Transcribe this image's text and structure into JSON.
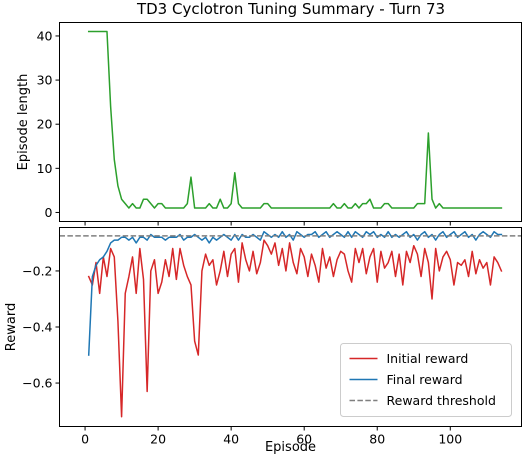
{
  "title": "TD3 Cyclotron Tuning Summary - Turn 73",
  "chart_data": [
    {
      "type": "line",
      "ylabel": "Episode length",
      "xlim": [
        -7,
        119.5
      ],
      "ylim": [
        -2.05,
        43.05
      ],
      "xticks": [
        0,
        20,
        40,
        60,
        80,
        100
      ],
      "yticks": [
        0,
        10,
        20,
        30,
        40
      ],
      "show_xtick_labels": false,
      "series": [
        {
          "color": "#2ca02c",
          "x": [
            1,
            2,
            3,
            4,
            5,
            6,
            7,
            8,
            9,
            10,
            11,
            12,
            13,
            14,
            15,
            16,
            17,
            18,
            19,
            20,
            21,
            22,
            23,
            24,
            25,
            26,
            27,
            28,
            29,
            30,
            31,
            32,
            33,
            34,
            35,
            36,
            37,
            38,
            39,
            40,
            41,
            42,
            43,
            44,
            45,
            46,
            47,
            48,
            49,
            50,
            51,
            52,
            53,
            54,
            55,
            56,
            57,
            58,
            59,
            60,
            61,
            62,
            63,
            64,
            65,
            66,
            67,
            68,
            69,
            70,
            71,
            72,
            73,
            74,
            75,
            76,
            77,
            78,
            79,
            80,
            81,
            82,
            83,
            84,
            85,
            86,
            87,
            88,
            89,
            90,
            91,
            92,
            93,
            94,
            95,
            96,
            97,
            98,
            99,
            100,
            101,
            102,
            103,
            104,
            105,
            106,
            107,
            108,
            109,
            110,
            111,
            112,
            113,
            114
          ],
          "values": [
            41,
            41,
            41,
            41,
            41,
            41,
            24,
            12,
            6,
            3,
            2,
            1,
            2,
            1,
            1,
            3,
            3,
            2,
            1,
            2,
            2,
            1,
            1,
            1,
            1,
            1,
            1,
            2,
            8,
            1,
            1,
            1,
            1,
            2,
            1,
            1,
            3,
            1,
            1,
            2,
            9,
            2,
            1,
            1,
            1,
            1,
            1,
            1,
            2,
            2,
            1,
            1,
            1,
            1,
            1,
            1,
            1,
            1,
            1,
            1,
            1,
            1,
            1,
            1,
            1,
            1,
            1,
            2,
            1,
            1,
            2,
            1,
            1,
            2,
            1,
            2,
            2,
            3,
            1,
            1,
            1,
            2,
            2,
            1,
            1,
            1,
            1,
            1,
            1,
            1,
            2,
            2,
            2,
            18,
            3,
            1,
            2,
            1,
            1,
            1,
            1,
            1,
            1,
            1,
            1,
            1,
            1,
            1,
            1,
            1,
            1,
            1,
            1,
            1
          ]
        }
      ]
    },
    {
      "type": "line",
      "xlabel": "Episode",
      "ylabel": "Reward",
      "xlim": [
        -7,
        119.5
      ],
      "ylim": [
        -0.755,
        -0.045
      ],
      "xticks": [
        0,
        20,
        40,
        60,
        80,
        100
      ],
      "yticks": [
        -0.6,
        -0.4,
        -0.2
      ],
      "legend_position": "lower right",
      "series": [
        {
          "name": "Initial reward",
          "color": "#d62728",
          "x": [
            1,
            2,
            3,
            4,
            5,
            6,
            7,
            8,
            9,
            10,
            11,
            12,
            13,
            14,
            15,
            16,
            17,
            18,
            19,
            20,
            21,
            22,
            23,
            24,
            25,
            26,
            27,
            28,
            29,
            30,
            31,
            32,
            33,
            34,
            35,
            36,
            37,
            38,
            39,
            40,
            41,
            42,
            43,
            44,
            45,
            46,
            47,
            48,
            49,
            50,
            51,
            52,
            53,
            54,
            55,
            56,
            57,
            58,
            59,
            60,
            61,
            62,
            63,
            64,
            65,
            66,
            67,
            68,
            69,
            70,
            71,
            72,
            73,
            74,
            75,
            76,
            77,
            78,
            79,
            80,
            81,
            82,
            83,
            84,
            85,
            86,
            87,
            88,
            89,
            90,
            91,
            92,
            93,
            94,
            95,
            96,
            97,
            98,
            99,
            100,
            101,
            102,
            103,
            104,
            105,
            106,
            107,
            108,
            109,
            110,
            111,
            112,
            113,
            114
          ],
          "values": [
            -0.22,
            -0.25,
            -0.17,
            -0.28,
            -0.15,
            -0.22,
            -0.12,
            -0.15,
            -0.38,
            -0.72,
            -0.28,
            -0.22,
            -0.15,
            -0.28,
            -0.12,
            -0.23,
            -0.63,
            -0.2,
            -0.16,
            -0.28,
            -0.24,
            -0.16,
            -0.22,
            -0.12,
            -0.23,
            -0.12,
            -0.18,
            -0.22,
            -0.25,
            -0.45,
            -0.5,
            -0.2,
            -0.14,
            -0.18,
            -0.16,
            -0.25,
            -0.2,
            -0.13,
            -0.22,
            -0.14,
            -0.12,
            -0.24,
            -0.1,
            -0.16,
            -0.2,
            -0.13,
            -0.21,
            -0.17,
            -0.09,
            -0.11,
            -0.14,
            -0.1,
            -0.18,
            -0.12,
            -0.2,
            -0.1,
            -0.17,
            -0.21,
            -0.12,
            -0.15,
            -0.22,
            -0.14,
            -0.18,
            -0.24,
            -0.12,
            -0.19,
            -0.15,
            -0.22,
            -0.16,
            -0.13,
            -0.14,
            -0.2,
            -0.24,
            -0.12,
            -0.17,
            -0.12,
            -0.21,
            -0.15,
            -0.12,
            -0.24,
            -0.13,
            -0.19,
            -0.17,
            -0.13,
            -0.22,
            -0.14,
            -0.25,
            -0.13,
            -0.17,
            -0.11,
            -0.14,
            -0.22,
            -0.12,
            -0.17,
            -0.3,
            -0.12,
            -0.2,
            -0.15,
            -0.13,
            -0.16,
            -0.25,
            -0.17,
            -0.18,
            -0.16,
            -0.22,
            -0.13,
            -0.21,
            -0.16,
            -0.19,
            -0.17,
            -0.25,
            -0.15,
            -0.17,
            -0.2
          ]
        },
        {
          "name": "Final reward",
          "color": "#1f77b4",
          "x": [
            1,
            2,
            3,
            4,
            5,
            6,
            7,
            8,
            9,
            10,
            11,
            12,
            13,
            14,
            15,
            16,
            17,
            18,
            19,
            20,
            21,
            22,
            23,
            24,
            25,
            26,
            27,
            28,
            29,
            30,
            31,
            32,
            33,
            34,
            35,
            36,
            37,
            38,
            39,
            40,
            41,
            42,
            43,
            44,
            45,
            46,
            47,
            48,
            49,
            50,
            51,
            52,
            53,
            54,
            55,
            56,
            57,
            58,
            59,
            60,
            61,
            62,
            63,
            64,
            65,
            66,
            67,
            68,
            69,
            70,
            71,
            72,
            73,
            74,
            75,
            76,
            77,
            78,
            79,
            80,
            81,
            82,
            83,
            84,
            85,
            86,
            87,
            88,
            89,
            90,
            91,
            92,
            93,
            94,
            95,
            96,
            97,
            98,
            99,
            100,
            101,
            102,
            103,
            104,
            105,
            106,
            107,
            108,
            109,
            110,
            111,
            112,
            113,
            114
          ],
          "values": [
            -0.5,
            -0.22,
            -0.18,
            -0.16,
            -0.15,
            -0.13,
            -0.1,
            -0.09,
            -0.09,
            -0.08,
            -0.08,
            -0.09,
            -0.08,
            -0.1,
            -0.08,
            -0.08,
            -0.09,
            -0.07,
            -0.08,
            -0.08,
            -0.08,
            -0.09,
            -0.08,
            -0.08,
            -0.08,
            -0.07,
            -0.09,
            -0.08,
            -0.08,
            -0.07,
            -0.08,
            -0.09,
            -0.08,
            -0.1,
            -0.08,
            -0.09,
            -0.08,
            -0.07,
            -0.08,
            -0.09,
            -0.07,
            -0.09,
            -0.07,
            -0.08,
            -0.08,
            -0.07,
            -0.08,
            -0.09,
            -0.06,
            -0.07,
            -0.08,
            -0.07,
            -0.08,
            -0.06,
            -0.08,
            -0.07,
            -0.09,
            -0.06,
            -0.07,
            -0.08,
            -0.07,
            -0.07,
            -0.06,
            -0.08,
            -0.07,
            -0.06,
            -0.08,
            -0.07,
            -0.06,
            -0.07,
            -0.08,
            -0.06,
            -0.08,
            -0.06,
            -0.07,
            -0.08,
            -0.06,
            -0.07,
            -0.06,
            -0.08,
            -0.07,
            -0.08,
            -0.06,
            -0.08,
            -0.07,
            -0.08,
            -0.07,
            -0.06,
            -0.08,
            -0.07,
            -0.09,
            -0.07,
            -0.06,
            -0.08,
            -0.07,
            -0.09,
            -0.07,
            -0.06,
            -0.08,
            -0.07,
            -0.06,
            -0.08,
            -0.07,
            -0.06,
            -0.08,
            -0.07,
            -0.09,
            -0.07,
            -0.06,
            -0.07,
            -0.08,
            -0.06,
            -0.07,
            -0.07
          ]
        },
        {
          "name": "Reward threshold",
          "color": "#7f7f7f",
          "style": "dashed",
          "y_constant": -0.075
        }
      ]
    }
  ]
}
